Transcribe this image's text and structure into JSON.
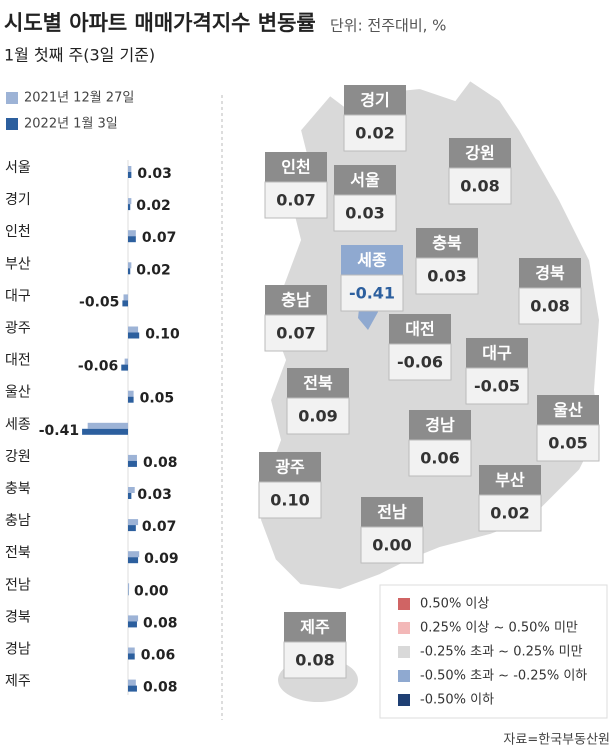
{
  "chart_data": {
    "type": "bar",
    "title": "시도별 아파트 매매가격지수 변동률",
    "unit": "단위: 전주대비, %",
    "subtitle": "1월 첫째 주(3일 기준)",
    "source": "자료=한국부동산원",
    "categories": [
      "서울",
      "경기",
      "인천",
      "부산",
      "대구",
      "광주",
      "대전",
      "울산",
      "세종",
      "강원",
      "충북",
      "충남",
      "전북",
      "전남",
      "경북",
      "경남",
      "제주"
    ],
    "series": [
      {
        "name": "2021년 12월 27일",
        "color": "#9db3d6",
        "values": [
          0.03,
          0.03,
          0.07,
          0.03,
          -0.04,
          0.09,
          -0.03,
          0.05,
          -0.36,
          0.08,
          0.06,
          0.09,
          0.1,
          0.01,
          0.09,
          0.06,
          0.07
        ]
      },
      {
        "name": "2022년 1월 3일",
        "color": "#2c5f9e",
        "values": [
          0.03,
          0.02,
          0.07,
          0.02,
          -0.05,
          0.1,
          -0.06,
          0.05,
          -0.41,
          0.08,
          0.03,
          0.07,
          0.09,
          0.0,
          0.08,
          0.06,
          0.08
        ],
        "value_labels": [
          "0.03",
          "0.02",
          "0.07",
          "0.02",
          "-0.05",
          "0.10",
          "-0.06",
          "0.05",
          "-0.41",
          "0.08",
          "0.03",
          "0.07",
          "0.09",
          "0.00",
          "0.08",
          "0.06",
          "0.08"
        ]
      }
    ],
    "legend": [
      {
        "label": "0.50% 이상",
        "color": "#d06464",
        "from": 0.5,
        "to": null
      },
      {
        "label": "0.25% 이상 ~ 0.50% 미만",
        "color": "#f3b8b8",
        "from": 0.25,
        "to": 0.5
      },
      {
        "label": "-0.25% 초과 ~ 0.25% 미만",
        "color": "#d9d9d9",
        "from": -0.25,
        "to": 0.25
      },
      {
        "label": "-0.50% 초과 ~ -0.25% 이하",
        "color": "#8fa9d0",
        "from": -0.5,
        "to": -0.25
      },
      {
        "label": "-0.50% 이하",
        "color": "#1f3f73",
        "from": null,
        "to": -0.5
      }
    ]
  }
}
